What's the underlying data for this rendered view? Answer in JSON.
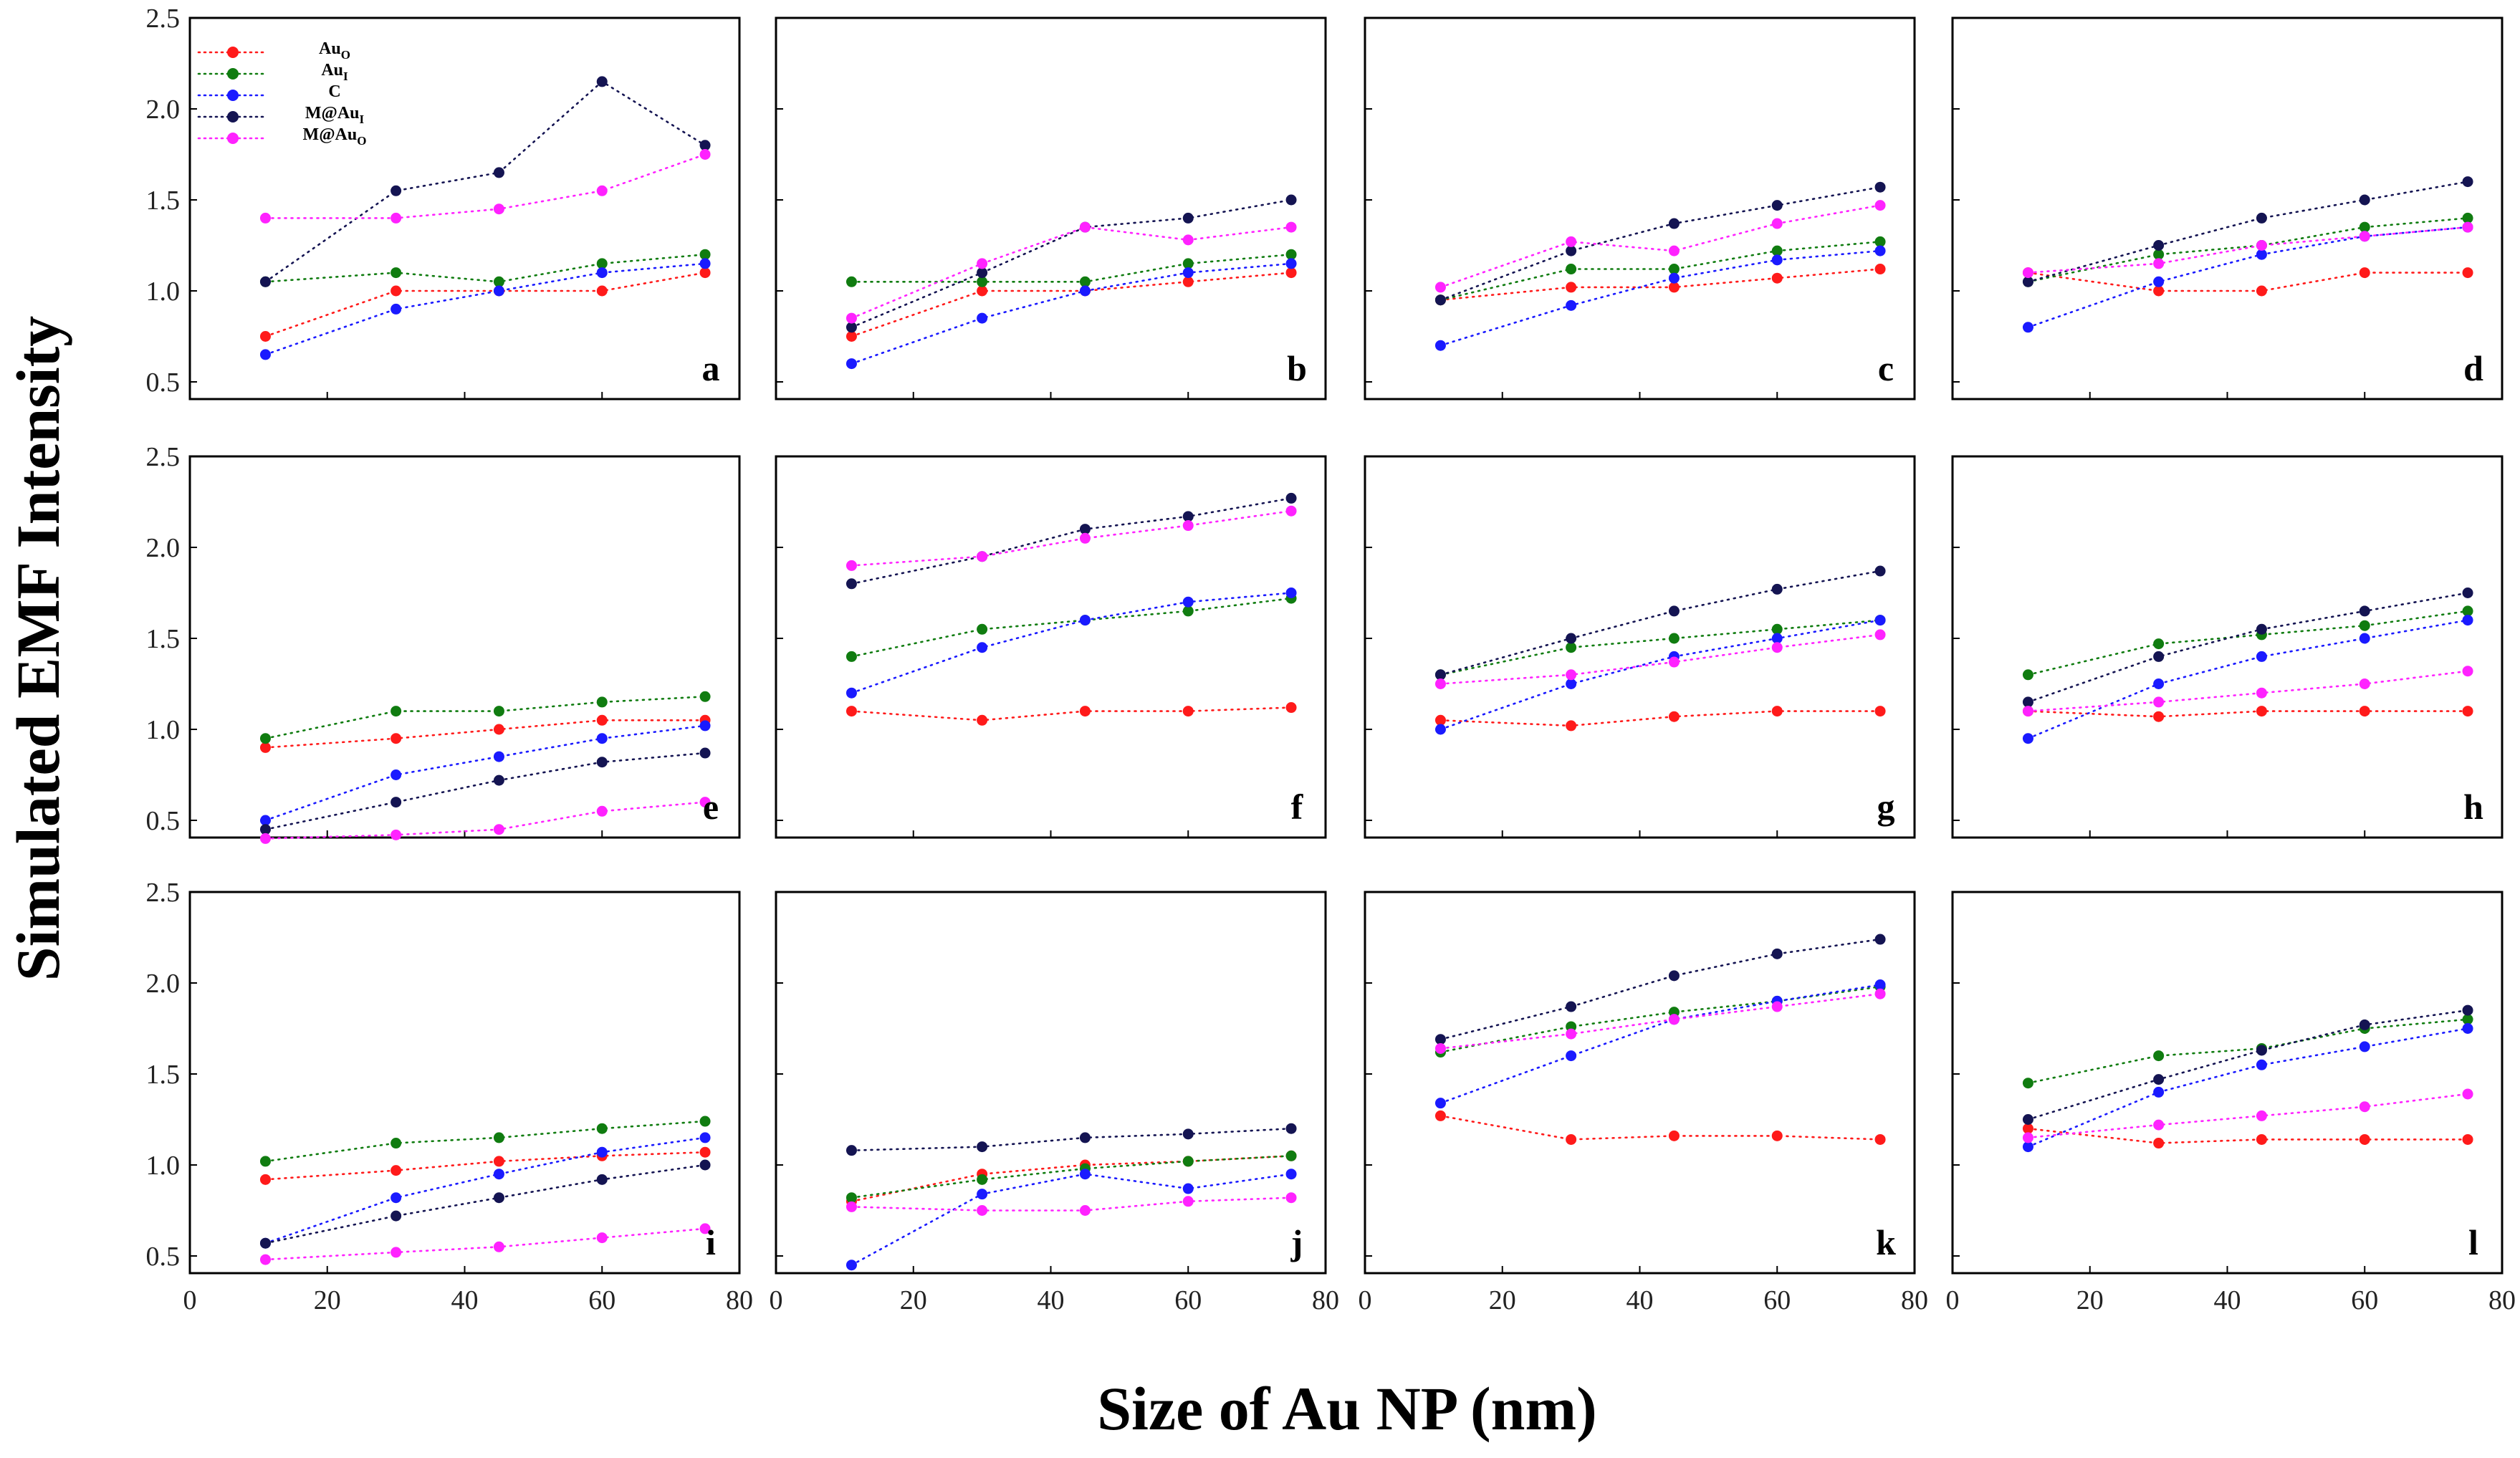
{
  "chart_data": {
    "type": "line",
    "layout": "3 rows x 4 columns of panels",
    "xlabel": "Size of Au NP (nm)",
    "ylabel": "Simulated EMF Intensity",
    "xlim": [
      0,
      80
    ],
    "ylim": [
      0.3,
      2.5
    ],
    "x_ticks": [
      "0",
      "20",
      "40",
      "60",
      "80"
    ],
    "y_ticks": [
      "0.5",
      "1.0",
      "1.5",
      "2.0",
      "2.5"
    ],
    "x": [
      11,
      30,
      45,
      60,
      75
    ],
    "legend": {
      "location": "top-left of panel a",
      "entries": [
        {
          "key": "AuO",
          "base": "Au",
          "sub": "O",
          "color": "#ff1a1a"
        },
        {
          "key": "AuI",
          "base": "Au",
          "sub": "I",
          "color": "#107c10"
        },
        {
          "key": "C",
          "base": "C",
          "sub": "",
          "color": "#1a1aff"
        },
        {
          "key": "MAuI",
          "base": "M@Au",
          "sub": "I",
          "color": "#141452"
        },
        {
          "key": "MAuO",
          "base": "M@Au",
          "sub": "O",
          "color": "#ff22ff"
        }
      ]
    },
    "panels": [
      {
        "label": "a",
        "series": {
          "AuO": [
            0.75,
            1.0,
            1.0,
            1.0,
            1.1
          ],
          "AuI": [
            1.05,
            1.1,
            1.05,
            1.15,
            1.2
          ],
          "C": [
            0.65,
            0.9,
            1.0,
            1.1,
            1.15
          ],
          "MAuI": [
            1.05,
            1.55,
            1.65,
            2.15,
            1.8
          ],
          "MAuO": [
            1.4,
            1.4,
            1.45,
            1.55,
            1.75
          ]
        }
      },
      {
        "label": "b",
        "series": {
          "AuO": [
            0.75,
            1.0,
            1.0,
            1.05,
            1.1
          ],
          "AuI": [
            1.05,
            1.05,
            1.05,
            1.15,
            1.2
          ],
          "C": [
            0.6,
            0.85,
            1.0,
            1.1,
            1.15
          ],
          "MAuI": [
            0.8,
            1.1,
            1.35,
            1.4,
            1.5
          ],
          "MAuO": [
            0.85,
            1.15,
            1.35,
            1.28,
            1.35
          ]
        }
      },
      {
        "label": "c",
        "series": {
          "AuO": [
            0.95,
            1.02,
            1.02,
            1.07,
            1.12
          ],
          "AuI": [
            0.95,
            1.12,
            1.12,
            1.22,
            1.27
          ],
          "C": [
            0.7,
            0.92,
            1.07,
            1.17,
            1.22
          ],
          "MAuI": [
            0.95,
            1.22,
            1.37,
            1.47,
            1.57
          ],
          "MAuO": [
            1.02,
            1.27,
            1.22,
            1.37,
            1.47
          ]
        }
      },
      {
        "label": "d",
        "series": {
          "AuO": [
            1.1,
            1.0,
            1.0,
            1.1,
            1.1
          ],
          "AuI": [
            1.05,
            1.2,
            1.25,
            1.35,
            1.4
          ],
          "C": [
            0.8,
            1.05,
            1.2,
            1.3,
            1.35
          ],
          "MAuI": [
            1.05,
            1.25,
            1.4,
            1.5,
            1.6
          ],
          "MAuO": [
            1.1,
            1.15,
            1.25,
            1.3,
            1.35
          ]
        }
      },
      {
        "label": "e",
        "series": {
          "AuO": [
            0.9,
            0.95,
            1.0,
            1.05,
            1.05
          ],
          "AuI": [
            0.95,
            1.1,
            1.1,
            1.15,
            1.18
          ],
          "C": [
            0.5,
            0.75,
            0.85,
            0.95,
            1.02
          ],
          "MAuI": [
            0.45,
            0.6,
            0.72,
            0.82,
            0.87
          ],
          "MAuO": [
            0.4,
            0.42,
            0.45,
            0.55,
            0.6
          ]
        }
      },
      {
        "label": "f",
        "series": {
          "AuO": [
            1.1,
            1.05,
            1.1,
            1.1,
            1.12
          ],
          "AuI": [
            1.4,
            1.55,
            1.6,
            1.65,
            1.72
          ],
          "C": [
            1.2,
            1.45,
            1.6,
            1.7,
            1.75
          ],
          "MAuI": [
            1.8,
            1.95,
            2.1,
            2.17,
            2.27
          ],
          "MAuO": [
            1.9,
            1.95,
            2.05,
            2.12,
            2.2
          ]
        }
      },
      {
        "label": "g",
        "series": {
          "AuO": [
            1.05,
            1.02,
            1.07,
            1.1,
            1.1
          ],
          "AuI": [
            1.3,
            1.45,
            1.5,
            1.55,
            1.6
          ],
          "C": [
            1.0,
            1.25,
            1.4,
            1.5,
            1.6
          ],
          "MAuI": [
            1.3,
            1.5,
            1.65,
            1.77,
            1.87
          ],
          "MAuO": [
            1.25,
            1.3,
            1.37,
            1.45,
            1.52
          ]
        }
      },
      {
        "label": "h",
        "series": {
          "AuO": [
            1.1,
            1.07,
            1.1,
            1.1,
            1.1
          ],
          "AuI": [
            1.3,
            1.47,
            1.52,
            1.57,
            1.65
          ],
          "C": [
            0.95,
            1.25,
            1.4,
            1.5,
            1.6
          ],
          "MAuI": [
            1.15,
            1.4,
            1.55,
            1.65,
            1.75
          ],
          "MAuO": [
            1.1,
            1.15,
            1.2,
            1.25,
            1.32
          ]
        }
      },
      {
        "label": "i",
        "series": {
          "AuO": [
            0.92,
            0.97,
            1.02,
            1.05,
            1.07
          ],
          "AuI": [
            1.02,
            1.12,
            1.15,
            1.2,
            1.24
          ],
          "C": [
            0.57,
            0.82,
            0.95,
            1.07,
            1.15
          ],
          "MAuI": [
            0.57,
            0.72,
            0.82,
            0.92,
            1.0
          ],
          "MAuO": [
            0.48,
            0.52,
            0.55,
            0.6,
            0.65
          ]
        }
      },
      {
        "label": "j",
        "series": {
          "AuO": [
            0.8,
            0.95,
            1.0,
            1.02,
            1.05
          ],
          "AuI": [
            0.82,
            0.92,
            0.98,
            1.02,
            1.05
          ],
          "C": [
            0.45,
            0.84,
            0.95,
            0.87,
            0.95
          ],
          "MAuI": [
            1.08,
            1.1,
            1.15,
            1.17,
            1.2
          ],
          "MAuO": [
            0.77,
            0.75,
            0.75,
            0.8,
            0.82
          ]
        }
      },
      {
        "label": "k",
        "series": {
          "AuO": [
            1.27,
            1.14,
            1.16,
            1.16,
            1.14
          ],
          "AuI": [
            1.62,
            1.76,
            1.84,
            1.9,
            1.98
          ],
          "C": [
            1.34,
            1.6,
            1.8,
            1.9,
            1.99
          ],
          "MAuI": [
            1.69,
            1.87,
            2.04,
            2.16,
            2.24
          ],
          "MAuO": [
            1.64,
            1.72,
            1.8,
            1.87,
            1.94
          ]
        }
      },
      {
        "label": "l",
        "series": {
          "AuO": [
            1.2,
            1.12,
            1.14,
            1.14,
            1.14
          ],
          "AuI": [
            1.45,
            1.6,
            1.64,
            1.75,
            1.8
          ],
          "C": [
            1.1,
            1.4,
            1.55,
            1.65,
            1.75
          ],
          "MAuI": [
            1.25,
            1.47,
            1.63,
            1.77,
            1.85
          ],
          "MAuO": [
            1.15,
            1.22,
            1.27,
            1.32,
            1.39
          ]
        }
      }
    ]
  }
}
